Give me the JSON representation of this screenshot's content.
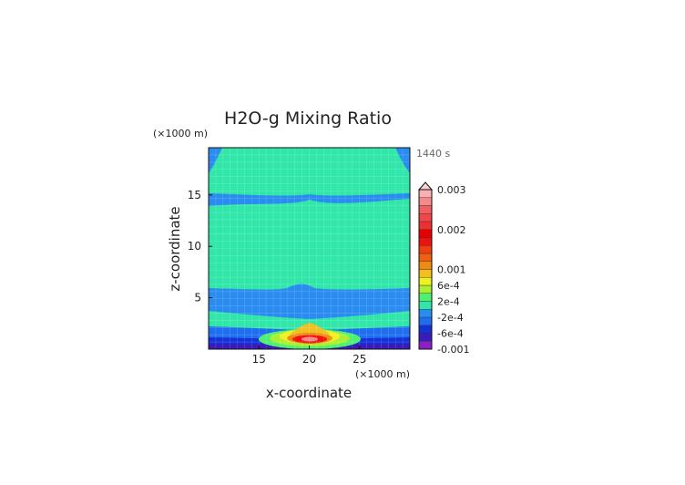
{
  "chart_data": {
    "type": "heatmap",
    "title": "H2O-g Mixing Ratio",
    "time_label": "1440 s",
    "x_unit": "(×1000 m)",
    "y_unit": "(×1000 m)",
    "xlabel": "x-coordinate",
    "ylabel": "z-coordinate",
    "xlim": [
      10,
      30
    ],
    "ylim": [
      0,
      19.6
    ],
    "x_ticks": [
      15,
      20,
      25
    ],
    "y_ticks": [
      5,
      10,
      15
    ],
    "x_tick_labels": [
      "15",
      "20",
      "25"
    ],
    "y_tick_labels": [
      "5",
      "10",
      "15"
    ],
    "grid": true,
    "colorbar": {
      "labels": [
        "0.003",
        "0.002",
        "0.001",
        "6e-4",
        "2e-4",
        "-2e-4",
        "-6e-4",
        "-0.001"
      ],
      "label_values": [
        0.003,
        0.002,
        0.001,
        0.0006,
        0.0002,
        -0.0002,
        -0.0006,
        -0.001
      ],
      "levels": [
        -0.001,
        -0.0008,
        -0.0006,
        -0.0004,
        -0.0002,
        0,
        0.0002,
        0.0004,
        0.0006,
        0.0008,
        0.001,
        0.0012,
        0.0014,
        0.0016,
        0.0018,
        0.002,
        0.0022,
        0.0024,
        0.0026,
        0.0028,
        0.003
      ],
      "colors": [
        "#8a1fc8",
        "#3a1ab8",
        "#1430d8",
        "#1e6ff0",
        "#2a8cf0",
        "#30e6a8",
        "#4df070",
        "#a8f030",
        "#f0f020",
        "#f0c020",
        "#f08a10",
        "#f06010",
        "#f04010",
        "#f01010",
        "#e80000",
        "#f03030",
        "#f04848",
        "#f06060",
        "#f48a8a",
        "#f8b0b0"
      ]
    },
    "regions": [
      {
        "name": "background",
        "value": 0.0001,
        "color": "#30e6a8"
      },
      {
        "name": "upper-left-corner",
        "value": -0.0001,
        "color": "#2a8cf0"
      },
      {
        "name": "upper-right-corner",
        "value": -0.0001,
        "color": "#2a8cf0"
      },
      {
        "name": "upper-band",
        "value": -0.0001,
        "color": "#2a8cf0"
      },
      {
        "name": "mid-lower-band",
        "value": -0.0001,
        "color": "#2a8cf0"
      },
      {
        "name": "near-surface-band",
        "value": -0.0004,
        "color": "#1e6ff0"
      },
      {
        "name": "surface-band",
        "value": -0.0007,
        "color": "#1430d8"
      },
      {
        "name": "plume-outer",
        "value": 0.0003,
        "color": "#a8f030"
      },
      {
        "name": "plume-yellow",
        "value": 0.0007,
        "color": "#f0f020"
      },
      {
        "name": "plume-orange",
        "value": 0.0012,
        "color": "#f08a10"
      },
      {
        "name": "plume-core",
        "value": 0.0021,
        "color": "#f01010"
      },
      {
        "name": "plume-peak",
        "value": 0.0027,
        "color": "#f48a8a"
      }
    ]
  }
}
